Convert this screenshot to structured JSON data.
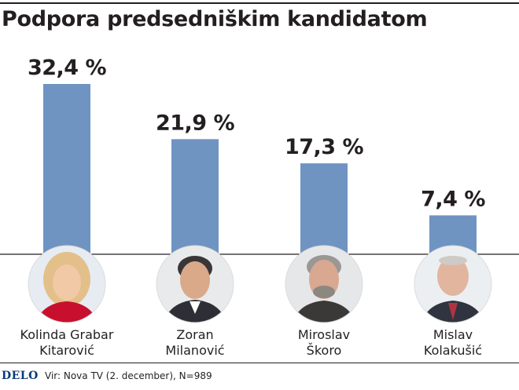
{
  "title": "Podpora predsedniškim kandidatom",
  "footer": {
    "logo": "DELO",
    "source": "Vir: Nova TV (2. december), N=989"
  },
  "colors": {
    "bar": "#7094c2",
    "text": "#231f20",
    "logo": "#0d3a78"
  },
  "chart_data": {
    "type": "bar",
    "title": "Podpora predsedniškim kandidatom",
    "categories": [
      "Kolinda Grabar Kitarović",
      "Zoran Milanović",
      "Miroslav Škoro",
      "Mislav Kolakušić"
    ],
    "category_lines": [
      [
        "Kolinda Grabar",
        "Kitarović"
      ],
      [
        "Zoran",
        "Milanović"
      ],
      [
        "Miroslav",
        "Škoro"
      ],
      [
        "Mislav",
        "Kolakušić"
      ]
    ],
    "values": [
      32.4,
      21.9,
      17.3,
      7.4
    ],
    "value_labels": [
      "32,4 %",
      "21,9 %",
      "17,3 %",
      "7,4 %"
    ],
    "unit": "%",
    "ylim": [
      0,
      32.4
    ],
    "grid": false,
    "legend": "none"
  }
}
